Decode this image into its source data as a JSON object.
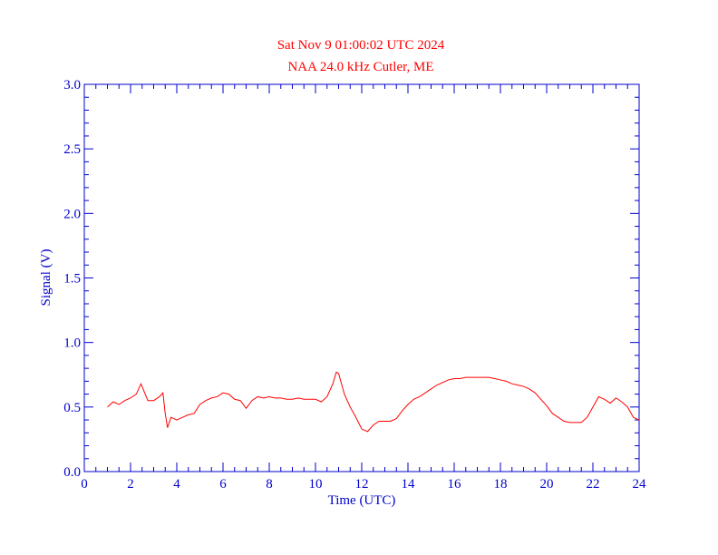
{
  "chart_data": {
    "type": "line",
    "title": "Sat Nov 9 01:00:02 UTC 2024",
    "subtitle": "NAA 24.0 kHz Cutler, ME",
    "xlabel": "Time (UTC)",
    "ylabel": "Signal (V)",
    "xlim": [
      0,
      24
    ],
    "ylim": [
      0,
      3
    ],
    "xticks": [
      0,
      2,
      4,
      6,
      8,
      10,
      12,
      14,
      16,
      18,
      20,
      22,
      24
    ],
    "yticks": [
      {
        "value": 0,
        "label": "0.0"
      },
      {
        "value": 0.5,
        "label": "0.5"
      },
      {
        "value": 1,
        "label": "1.0"
      },
      {
        "value": 1.5,
        "label": "1.5"
      },
      {
        "value": 2,
        "label": "2.0"
      },
      {
        "value": 2.5,
        "label": "2.5"
      },
      {
        "value": 3,
        "label": "3.0"
      }
    ],
    "axis_color": "#0000cc",
    "title_color": "#ff0000",
    "x": [
      1.0,
      1.25,
      1.5,
      1.75,
      2.0,
      2.25,
      2.45,
      2.75,
      3.0,
      3.25,
      3.4,
      3.5,
      3.6,
      3.75,
      4.0,
      4.25,
      4.5,
      4.75,
      5.0,
      5.25,
      5.5,
      5.75,
      6.0,
      6.25,
      6.5,
      6.75,
      7.0,
      7.25,
      7.5,
      7.75,
      8.0,
      8.25,
      8.5,
      8.75,
      9.0,
      9.25,
      9.5,
      9.75,
      10.0,
      10.25,
      10.5,
      10.75,
      10.9,
      11.0,
      11.25,
      11.5,
      11.75,
      12.0,
      12.25,
      12.5,
      12.75,
      13.0,
      13.25,
      13.5,
      13.75,
      14.0,
      14.25,
      14.5,
      14.75,
      15.0,
      15.25,
      15.5,
      15.75,
      16.0,
      16.25,
      16.5,
      16.75,
      17.0,
      17.25,
      17.5,
      17.75,
      18.0,
      18.25,
      18.5,
      18.75,
      19.0,
      19.25,
      19.5,
      19.75,
      20.0,
      20.25,
      20.5,
      20.75,
      21.0,
      21.25,
      21.5,
      21.75,
      22.0,
      22.25,
      22.5,
      22.75,
      23.0,
      23.25,
      23.5,
      23.75,
      24.0
    ],
    "series": [
      {
        "name": "Signal",
        "color": "#ff0000",
        "values": [
          0.5,
          0.54,
          0.52,
          0.55,
          0.57,
          0.6,
          0.68,
          0.55,
          0.55,
          0.58,
          0.61,
          0.45,
          0.34,
          0.42,
          0.4,
          0.42,
          0.44,
          0.45,
          0.52,
          0.55,
          0.57,
          0.58,
          0.61,
          0.6,
          0.56,
          0.55,
          0.49,
          0.55,
          0.58,
          0.57,
          0.58,
          0.57,
          0.57,
          0.56,
          0.56,
          0.57,
          0.56,
          0.56,
          0.56,
          0.54,
          0.58,
          0.68,
          0.77,
          0.76,
          0.6,
          0.5,
          0.42,
          0.33,
          0.31,
          0.36,
          0.39,
          0.39,
          0.39,
          0.41,
          0.47,
          0.52,
          0.56,
          0.58,
          0.61,
          0.64,
          0.67,
          0.69,
          0.71,
          0.72,
          0.72,
          0.73,
          0.73,
          0.73,
          0.73,
          0.73,
          0.72,
          0.71,
          0.7,
          0.68,
          0.67,
          0.66,
          0.64,
          0.61,
          0.56,
          0.51,
          0.45,
          0.42,
          0.39,
          0.38,
          0.38,
          0.38,
          0.42,
          0.5,
          0.58,
          0.56,
          0.53,
          0.57,
          0.54,
          0.5,
          0.42,
          0.4
        ]
      }
    ]
  }
}
